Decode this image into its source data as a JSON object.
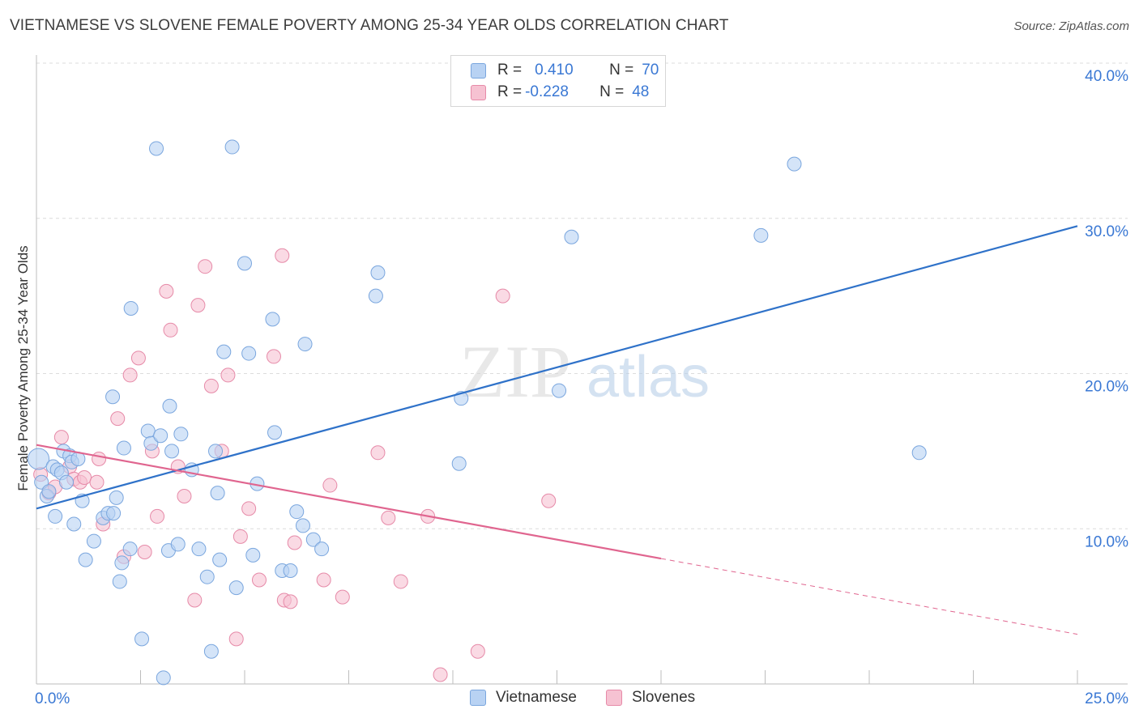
{
  "title": "VIETNAMESE VS SLOVENE FEMALE POVERTY AMONG 25-34 YEAR OLDS CORRELATION CHART",
  "source": "Source: ZipAtlas.com",
  "watermark": {
    "zip": "ZIP",
    "atlas": "atlas"
  },
  "legend": {
    "row1": {
      "r_label": "R =",
      "r_value": "0.410",
      "n_label": "N =",
      "n_value": "70"
    },
    "row2": {
      "r_label": "R =",
      "r_value": "-0.228",
      "n_label": "N =",
      "n_value": "48"
    }
  },
  "colors": {
    "blue_fill": "#b8d2f3",
    "blue_stroke": "#7aa6de",
    "blue_line": "#2f72c9",
    "pink_fill": "#f6c2d2",
    "pink_stroke": "#e68aa8",
    "pink_line": "#e0658f",
    "tick_label": "#3a78d4"
  },
  "chart_data": {
    "type": "scatter",
    "title": "VIETNAMESE VS SLOVENE FEMALE POVERTY AMONG 25-34 YEAR OLDS CORRELATION CHART",
    "xlabel": "",
    "ylabel": "Female Poverty Among 25-34 Year Olds",
    "xlim": [
      0,
      25
    ],
    "ylim": [
      0,
      40
    ],
    "x_tick_labels": [
      "0.0%",
      "25.0%"
    ],
    "y_ticks": [
      10,
      20,
      30,
      40
    ],
    "y_tick_labels": [
      "10.0%",
      "20.0%",
      "30.0%",
      "40.0%"
    ],
    "grid": true,
    "legend_position": "top-center",
    "series": [
      {
        "name": "Vietnamese",
        "r": 0.41,
        "n": 70,
        "trend": {
          "x": [
            0,
            25
          ],
          "y": [
            11.3,
            29.5
          ],
          "dashed_from": null
        },
        "points": [
          [
            0.05,
            14.5
          ],
          [
            0.12,
            13.0
          ],
          [
            0.25,
            12.1
          ],
          [
            0.4,
            14.0
          ],
          [
            0.45,
            10.8
          ],
          [
            0.5,
            13.8
          ],
          [
            0.6,
            13.6
          ],
          [
            0.65,
            15.0
          ],
          [
            0.72,
            13.0
          ],
          [
            0.8,
            14.7
          ],
          [
            0.85,
            14.3
          ],
          [
            0.9,
            10.3
          ],
          [
            1.0,
            14.5
          ],
          [
            1.1,
            11.8
          ],
          [
            1.18,
            8.0
          ],
          [
            1.38,
            9.2
          ],
          [
            1.6,
            10.7
          ],
          [
            1.72,
            11.0
          ],
          [
            1.83,
            18.5
          ],
          [
            1.85,
            11.0
          ],
          [
            1.92,
            12.0
          ],
          [
            2.0,
            6.6
          ],
          [
            2.05,
            7.8
          ],
          [
            2.1,
            15.2
          ],
          [
            2.25,
            8.7
          ],
          [
            2.27,
            24.2
          ],
          [
            2.53,
            2.9
          ],
          [
            2.68,
            16.3
          ],
          [
            2.75,
            15.5
          ],
          [
            2.88,
            34.5
          ],
          [
            2.98,
            16.0
          ],
          [
            3.05,
            0.4
          ],
          [
            3.17,
            8.6
          ],
          [
            3.2,
            17.9
          ],
          [
            3.25,
            15.0
          ],
          [
            3.4,
            9.0
          ],
          [
            3.47,
            16.1
          ],
          [
            3.73,
            13.8
          ],
          [
            3.9,
            8.7
          ],
          [
            4.1,
            6.9
          ],
          [
            4.2,
            2.1
          ],
          [
            4.3,
            15.0
          ],
          [
            4.35,
            12.3
          ],
          [
            4.4,
            8.0
          ],
          [
            4.5,
            21.4
          ],
          [
            4.7,
            34.6
          ],
          [
            4.8,
            6.2
          ],
          [
            5.0,
            27.1
          ],
          [
            5.1,
            21.3
          ],
          [
            5.2,
            8.3
          ],
          [
            5.3,
            12.9
          ],
          [
            5.67,
            23.5
          ],
          [
            5.72,
            16.2
          ],
          [
            5.9,
            7.3
          ],
          [
            6.1,
            7.3
          ],
          [
            6.25,
            11.1
          ],
          [
            6.4,
            10.2
          ],
          [
            6.45,
            21.9
          ],
          [
            6.65,
            9.3
          ],
          [
            6.85,
            8.7
          ],
          [
            8.15,
            25.0
          ],
          [
            8.2,
            26.5
          ],
          [
            10.15,
            14.2
          ],
          [
            10.2,
            18.4
          ],
          [
            12.55,
            18.9
          ],
          [
            12.85,
            28.8
          ],
          [
            17.4,
            28.9
          ],
          [
            18.2,
            33.5
          ],
          [
            21.2,
            14.9
          ],
          [
            0.3,
            12.4
          ]
        ]
      },
      {
        "name": "Slovenes",
        "r": -0.228,
        "n": 48,
        "trend": {
          "x": [
            0,
            25
          ],
          "y": [
            15.4,
            3.2
          ],
          "dashed_from": 15
        },
        "points": [
          [
            0.1,
            13.5
          ],
          [
            0.3,
            12.3
          ],
          [
            0.45,
            12.7
          ],
          [
            0.6,
            15.9
          ],
          [
            0.8,
            14.0
          ],
          [
            0.9,
            13.2
          ],
          [
            1.05,
            13.0
          ],
          [
            1.15,
            13.3
          ],
          [
            1.45,
            13.0
          ],
          [
            1.5,
            14.5
          ],
          [
            1.6,
            10.3
          ],
          [
            1.95,
            17.1
          ],
          [
            2.1,
            8.2
          ],
          [
            2.25,
            19.9
          ],
          [
            2.45,
            21.0
          ],
          [
            2.6,
            8.5
          ],
          [
            2.78,
            15.0
          ],
          [
            2.9,
            10.8
          ],
          [
            3.12,
            25.3
          ],
          [
            3.22,
            22.8
          ],
          [
            3.4,
            14.0
          ],
          [
            3.55,
            12.1
          ],
          [
            3.8,
            5.4
          ],
          [
            3.88,
            24.4
          ],
          [
            4.05,
            26.9
          ],
          [
            4.2,
            19.2
          ],
          [
            4.45,
            15.0
          ],
          [
            4.6,
            19.9
          ],
          [
            4.8,
            2.9
          ],
          [
            4.9,
            9.5
          ],
          [
            5.1,
            11.3
          ],
          [
            5.35,
            6.7
          ],
          [
            5.7,
            21.1
          ],
          [
            5.9,
            27.6
          ],
          [
            5.95,
            5.4
          ],
          [
            6.1,
            5.3
          ],
          [
            6.2,
            9.1
          ],
          [
            6.9,
            6.7
          ],
          [
            7.05,
            12.8
          ],
          [
            7.35,
            5.6
          ],
          [
            8.2,
            14.9
          ],
          [
            8.45,
            10.7
          ],
          [
            8.75,
            6.6
          ],
          [
            9.4,
            10.8
          ],
          [
            9.7,
            0.6
          ],
          [
            10.6,
            2.1
          ],
          [
            11.2,
            25.0
          ],
          [
            12.3,
            11.8
          ]
        ]
      }
    ]
  }
}
